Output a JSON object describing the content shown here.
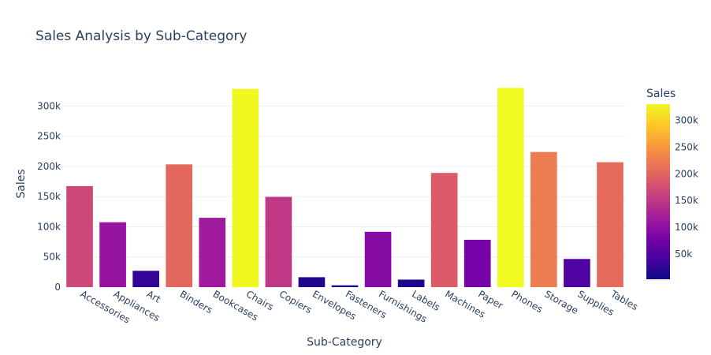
{
  "chart_data": {
    "type": "bar",
    "title": "Sales Analysis by Sub-Category",
    "xlabel": "Sub-Category",
    "ylabel": "Sales",
    "ylim": [
      0,
      345000
    ],
    "yticks": [
      0,
      50000,
      100000,
      150000,
      200000,
      250000,
      300000
    ],
    "ytick_labels": [
      "0",
      "50k",
      "100k",
      "150k",
      "200k",
      "250k",
      "300k"
    ],
    "categories": [
      "Accessories",
      "Appliances",
      "Art",
      "Binders",
      "Bookcases",
      "Chairs",
      "Copiers",
      "Envelopes",
      "Fasteners",
      "Furnishings",
      "Labels",
      "Machines",
      "Paper",
      "Phones",
      "Storage",
      "Supplies",
      "Tables"
    ],
    "values": [
      167380,
      107532,
      27119,
      203413,
      114880,
      328449,
      149528,
      16476,
      3024,
      91705,
      12486,
      189239,
      78479,
      330007,
      223844,
      46674,
      206966
    ],
    "grid": true,
    "colorbar": {
      "title": "Sales",
      "min": 3024,
      "max": 330007,
      "ticks": [
        50000,
        100000,
        150000,
        200000,
        250000,
        300000
      ],
      "tick_labels": [
        "50k",
        "100k",
        "150k",
        "200k",
        "250k",
        "300k"
      ],
      "colorscale": [
        "#0d0887",
        "#46039f",
        "#7201a8",
        "#9c179e",
        "#bd3786",
        "#d8576b",
        "#ed7953",
        "#fb9f3a",
        "#fdca26",
        "#f0f921"
      ]
    }
  }
}
